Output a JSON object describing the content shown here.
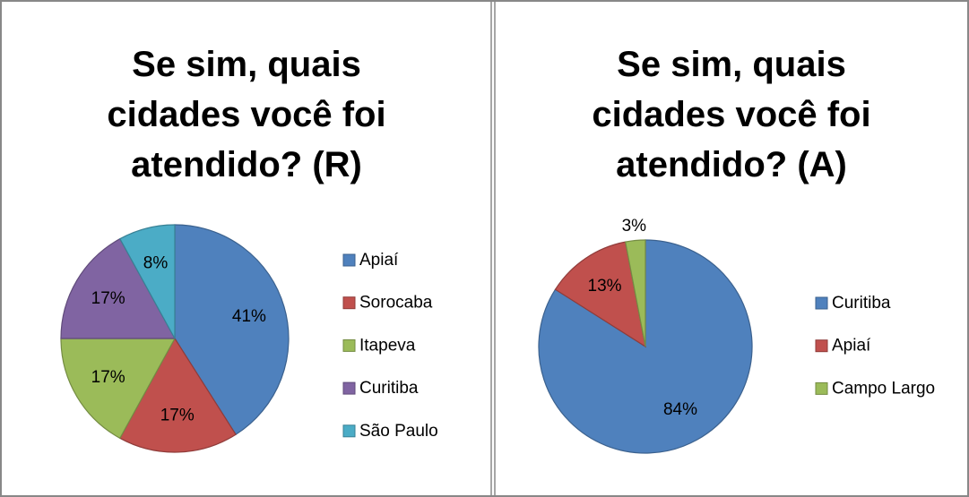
{
  "chart_data": [
    {
      "type": "pie",
      "title": "Se sim, quais cidades você foi atendido? (R)",
      "categories": [
        "Apiaí",
        "Sorocaba",
        "Itapeva",
        "Curitiba",
        "São Paulo"
      ],
      "values": [
        41,
        17,
        17,
        17,
        8
      ],
      "value_labels": [
        "41%",
        "17%",
        "17%",
        "17%",
        "8%"
      ],
      "colors": [
        "#4f81bd",
        "#c0504d",
        "#9bbb59",
        "#8064a2",
        "#4bacc6"
      ],
      "legend": "right"
    },
    {
      "type": "pie",
      "title": "Se sim, quais cidades você foi atendido? (A)",
      "categories": [
        "Curitiba",
        "Apiaí",
        "Campo Largo"
      ],
      "values": [
        84,
        13,
        3
      ],
      "value_labels": [
        "84%",
        "13%",
        "3%"
      ],
      "colors": [
        "#4f81bd",
        "#c0504d",
        "#9bbb59"
      ],
      "legend": "right"
    }
  ]
}
